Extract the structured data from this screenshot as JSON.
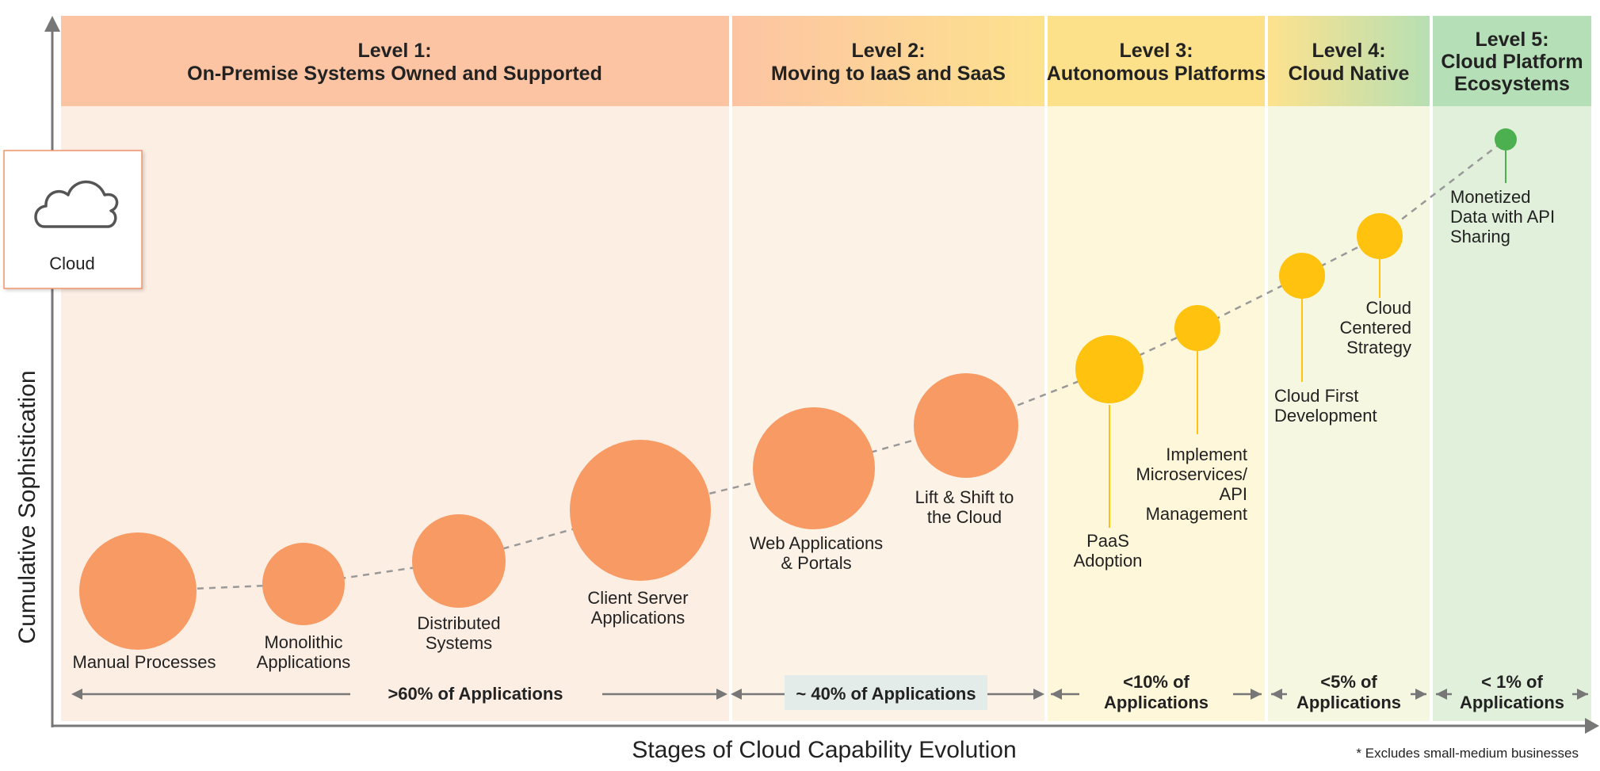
{
  "levels": [
    {
      "title_line1": "Level 1:",
      "title_line2": "On-Premise Systems Owned and Supported",
      "share": ">60% of Applications"
    },
    {
      "title_line1": "Level 2:",
      "title_line2": "Moving to IaaS and SaaS",
      "share": "~ 40% of Applications"
    },
    {
      "title_line1": "Level 3:",
      "title_line2": "Autonomous Platforms",
      "share_line1": "<10% of",
      "share_line2": "Applications"
    },
    {
      "title_line1": "Level 4:",
      "title_line2": "Cloud Native",
      "share_line1": "<5% of",
      "share_line2": "Applications"
    },
    {
      "title_line1": "Level 5:",
      "title_line2": "Cloud Platform",
      "title_line3": "Ecosystems",
      "share_line1": "< 1% of",
      "share_line2": "Applications"
    }
  ],
  "legend": {
    "label": "Cloud",
    "icon": "cloud-icon"
  },
  "axes": {
    "y_label": "Cumulative Sophistication",
    "x_label": "Stages of Cloud Capability Evolution"
  },
  "footnote": "* Excludes small-medium businesses",
  "stages": [
    {
      "lines": [
        "Manual Processes"
      ],
      "level": 1
    },
    {
      "lines": [
        "Monolithic",
        "Applications"
      ],
      "level": 1
    },
    {
      "lines": [
        "Distributed",
        "Systems"
      ],
      "level": 1
    },
    {
      "lines": [
        "Client Server",
        "Applications"
      ],
      "level": 1
    },
    {
      "lines": [
        "Web Applications",
        "& Portals"
      ],
      "level": 2
    },
    {
      "lines": [
        "Lift & Shift to",
        "the Cloud"
      ],
      "level": 2
    },
    {
      "lines": [
        "PaaS",
        "Adoption"
      ],
      "level": 3
    },
    {
      "lines": [
        "Implement",
        "Microservices/",
        "API",
        "Management"
      ],
      "level": 3
    },
    {
      "lines": [
        "Cloud First",
        "Development"
      ],
      "level": 4
    },
    {
      "lines": [
        "Cloud",
        "Centered",
        "Strategy"
      ],
      "level": 4
    },
    {
      "lines": [
        "Monetized",
        "Data with API",
        "Sharing"
      ],
      "level": 5
    }
  ],
  "colors": {
    "level1": "#f79a63",
    "level2": "#f79a63",
    "level3": "#ffc20e",
    "level4": "#ffc20e",
    "level5": "#4caf50",
    "header1": "#fdc4a3",
    "header3": "#fde08a",
    "header5": "#b5dfb6",
    "trend": "#999999",
    "axis": "#777777"
  }
}
